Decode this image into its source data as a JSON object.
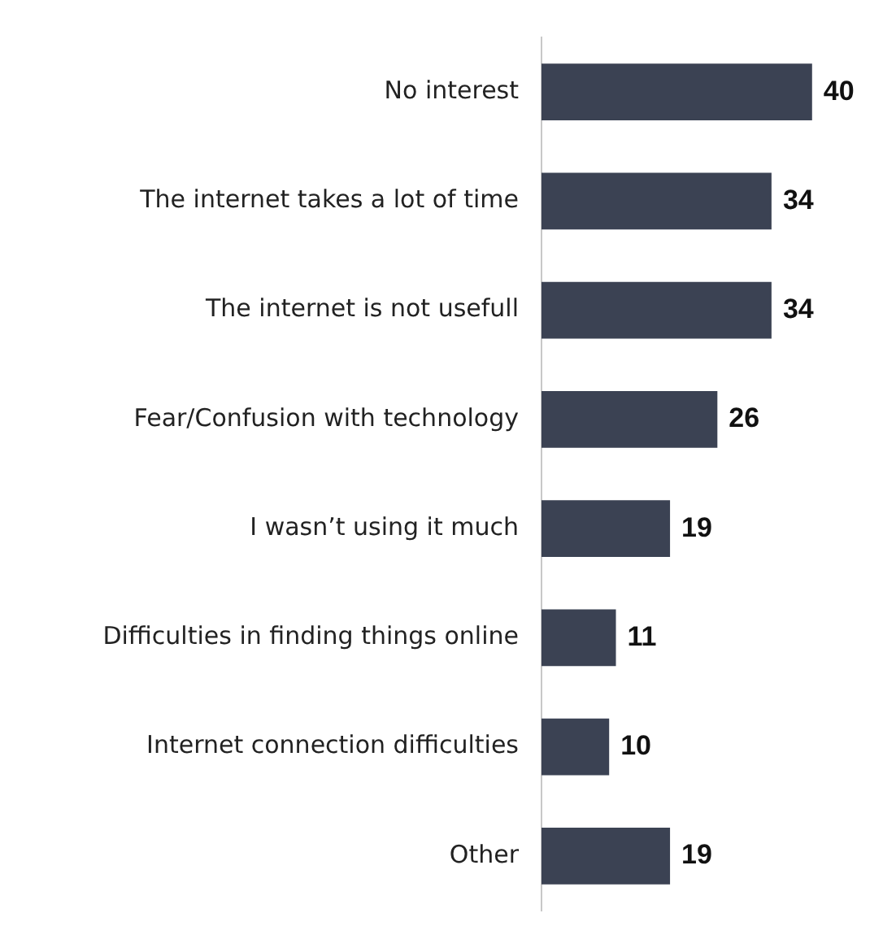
{
  "chart_data": {
    "type": "bar",
    "orientation": "horizontal",
    "categories": [
      "No interest",
      "The internet takes a lot of time",
      "The internet is not usefull",
      "Fear/Confusion with technology",
      "I wasn’t using it much",
      "Difficulties in finding things online",
      "Internet connection difficulties",
      "Other"
    ],
    "values": [
      40,
      34,
      34,
      26,
      19,
      11,
      10,
      19
    ],
    "color": "#3b4253",
    "data_labels": true,
    "legend": false
  }
}
